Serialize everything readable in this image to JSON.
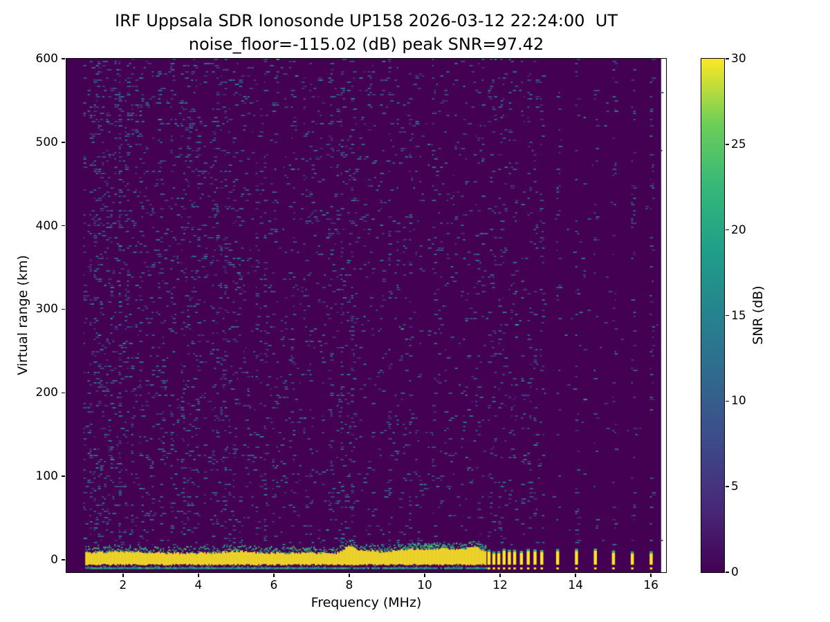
{
  "chart_data": {
    "type": "heatmap",
    "title": "IRF Uppsala SDR Ionosonde UP158 2026-03-12 22:24:00  UT",
    "subtitle": "noise_floor=-115.02 (dB) peak SNR=97.42",
    "station": "IRF Uppsala SDR Ionosonde UP158",
    "timestamp_ut": "2026-03-12 22:24:00",
    "noise_floor_db": -115.02,
    "peak_snr_db": 97.42,
    "xlabel": "Frequency (MHz)",
    "ylabel": "Virtual range (km)",
    "xlim": [
      0.5,
      16.4
    ],
    "ylim": [
      -15,
      600
    ],
    "xticks": [
      2,
      4,
      6,
      8,
      10,
      12,
      14,
      16
    ],
    "yticks": [
      0,
      100,
      200,
      300,
      400,
      500,
      600
    ],
    "grid": false,
    "legend": "none",
    "colorbar": {
      "label": "SNR (dB)",
      "min": 0,
      "max": 30,
      "ticks": [
        0,
        5,
        10,
        15,
        20,
        25,
        30
      ],
      "colormap": "viridis",
      "position": "right"
    },
    "colormap_stops": [
      [
        0,
        "#440154"
      ],
      [
        0.125,
        "#482878"
      ],
      [
        0.25,
        "#3e4989"
      ],
      [
        0.375,
        "#31688e"
      ],
      [
        0.5,
        "#26828e"
      ],
      [
        0.625,
        "#1f9e89"
      ],
      [
        0.75,
        "#35b779"
      ],
      [
        0.875,
        "#6ece58"
      ],
      [
        1,
        "#fde725"
      ]
    ],
    "features": {
      "background_snr_db": 0,
      "data_extent_mhz": [
        0.5,
        16.27
      ],
      "noise_extent_mhz": [
        0.95,
        16.27
      ],
      "ground_return_band": {
        "freq_mhz": [
          1.0,
          11.62
        ],
        "range_km": [
          -6,
          8
        ],
        "snr_db": 30,
        "description": "saturated yellow ground/direct-pulse return band near 0 km"
      },
      "band_bumps": [
        [
          2.0,
          2,
          0.5
        ],
        [
          5.0,
          2,
          0.3
        ],
        [
          8.0,
          8,
          0.12
        ],
        [
          8.4,
          3,
          0.3
        ],
        [
          9.6,
          4,
          0.4
        ],
        [
          10.6,
          5,
          0.5
        ],
        [
          11.3,
          6,
          0.15
        ]
      ],
      "secondary_echo": {
        "freq_mhz": [
          1.0,
          11.62
        ],
        "range_km": -10,
        "snr_db_range": [
          12,
          24
        ],
        "description": "thin teal-green echo line just below the main band"
      },
      "pulse_frequencies_mhz": [
        11.7,
        11.83,
        11.96,
        12.1,
        12.24,
        12.38,
        12.56,
        12.74,
        12.92,
        13.1,
        13.52,
        14.02,
        14.52,
        15.0,
        15.5,
        16.0
      ],
      "noise_speckle": {
        "snr_db_range": [
          3,
          20
        ],
        "base_density_low_freq": 0.12,
        "base_density_high_freq": 0.04,
        "description": "scattered teal/blue receiver noise, denser below 6 MHz, faint vertical RFI stripes; above ~11.6 MHz noise confined to narrow stripes at pulse frequencies"
      }
    }
  }
}
